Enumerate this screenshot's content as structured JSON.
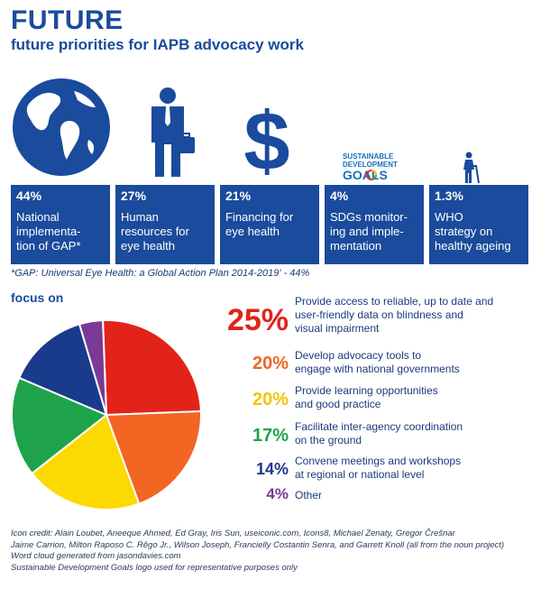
{
  "header": {
    "title": "FUTURE",
    "subtitle": "future priorities for IAPB advocacy work"
  },
  "colors": {
    "brand_blue": "#1a4b9c",
    "red": "#e2231a",
    "orange": "#f26522",
    "yellow": "#fcd900",
    "green": "#1ea34a",
    "navy": "#1a3a8c",
    "purple": "#7b3a96"
  },
  "icons": [
    "globe-icon",
    "businessman-icon",
    "dollar-sign-icon",
    "sdg-logo-icon",
    "elderly-person-icon"
  ],
  "sdg_logo": {
    "line1": "SUSTAINABLE",
    "line2": "DEVELOPMENT",
    "line3": "GOALS"
  },
  "cards": [
    {
      "pct": "44%",
      "label": "National\nimplementa-\ntion of GAP*"
    },
    {
      "pct": "27%",
      "label": "Human\nresources for\neye health"
    },
    {
      "pct": "21%",
      "label": "Financing for\neye health"
    },
    {
      "pct": "4%",
      "label": "SDGs monitor-\ning and imple-\nmentation"
    },
    {
      "pct": "1.3%",
      "label": "WHO\nstrategy on\nhealthy ageing"
    }
  ],
  "footnote": "*GAP: Universal Eye Health: a Global Action Plan 2014-2019' - 44%",
  "focus_heading": "focus on",
  "legend": [
    {
      "pct": "25%",
      "label": "Provide access to reliable, up to date and\nuser-friendly data on blindness and\nvisual impairment"
    },
    {
      "pct": "20%",
      "label": "Develop advocacy tools to\nengage with national governments"
    },
    {
      "pct": "20%",
      "label": "Provide learning opportunities\nand good practice"
    },
    {
      "pct": "17%",
      "label": "Facilitate inter-agency coordination\non the ground"
    },
    {
      "pct": "14%",
      "label": "Convene meetings and workshops\nat regional or national level"
    },
    {
      "pct": "4%",
      "label": "Other"
    }
  ],
  "chart_data": [
    {
      "type": "bar",
      "title": "future priorities for IAPB advocacy work",
      "categories": [
        "National implementation of GAP*",
        "Human resources for eye health",
        "Financing for eye health",
        "SDGs monitoring and implementation",
        "WHO strategy on healthy ageing"
      ],
      "values": [
        44,
        27,
        21,
        4,
        1.3
      ],
      "unit": "%"
    },
    {
      "type": "pie",
      "title": "focus on",
      "categories": [
        "Provide access to reliable, up to date and user-friendly data on blindness and visual impairment",
        "Develop advocacy tools to engage with national governments",
        "Provide learning opportunities and good practice",
        "Facilitate inter-agency coordination on the ground",
        "Convene meetings and workshops at regional or national level",
        "Other"
      ],
      "values": [
        25,
        20,
        20,
        17,
        14,
        4
      ],
      "colors": [
        "#e2231a",
        "#f26522",
        "#fcd900",
        "#1ea34a",
        "#1a3a8c",
        "#7b3a96"
      ],
      "unit": "%"
    }
  ],
  "credits": "Icon credit: Alain Loubet, Aneeque Ahmed, Ed Gray, Iris Sun, useiconic.com, Icons8, Michael Zenaty, Gregor Črešnar\nJaime Carrion, Milton Raposo C. Rêgo Jr., Wilson Joseph, Francielly Costantin Senra, and Garrett Knoll (all from the noun project)\nWord cloud generated from jasondavies.com\nSustainable Development Goals logo used for representative purposes only"
}
